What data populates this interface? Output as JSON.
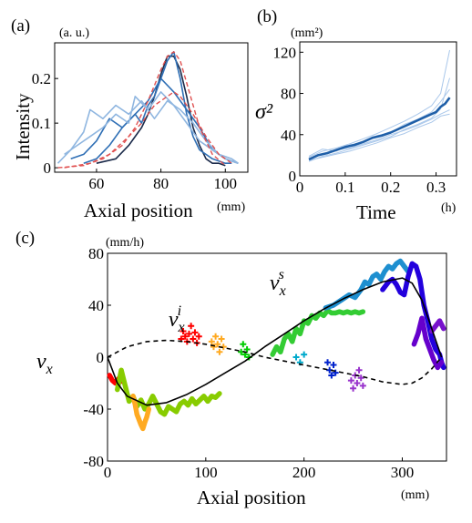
{
  "panels": {
    "a": {
      "label": "(a)"
    },
    "b": {
      "label": "(b)"
    },
    "c": {
      "label": "(c)"
    }
  },
  "colors": {
    "dark_navy": "#1b2a4a",
    "mid_blue": "#2f6fb5",
    "light_blue": "#8fb6e0",
    "red_dashed": "#e05050",
    "mean_line": "#1f5fa8",
    "model_black": "#000000"
  },
  "chart_data": [
    {
      "id": "a",
      "type": "line",
      "xlabel": "Axial position",
      "xunit": "(mm)",
      "ylabel": "Intensity",
      "yunit": "(a. u.)",
      "xlim": [
        47,
        107
      ],
      "ylim": [
        -0.01,
        0.28
      ],
      "xticks": [
        60,
        80,
        100
      ],
      "yticks": [
        0,
        0.1,
        0.2
      ],
      "ytick_labels": [
        "0",
        "0.1",
        "0.2"
      ],
      "series": [
        {
          "color": "#1b2a4a",
          "style": "solid",
          "x": [
            60,
            66,
            70,
            74,
            76,
            78,
            80,
            82,
            84,
            86,
            88,
            90,
            92,
            94,
            96,
            98,
            100
          ],
          "y": [
            0.01,
            0.02,
            0.05,
            0.09,
            0.12,
            0.16,
            0.21,
            0.25,
            0.25,
            0.22,
            0.16,
            0.09,
            0.05,
            0.02,
            0.01,
            0.01,
            0.005
          ]
        },
        {
          "color": "#2f6fb5",
          "style": "solid",
          "x": [
            56,
            60,
            64,
            68,
            72,
            74,
            76,
            78,
            80,
            82,
            84,
            86,
            88,
            90,
            92,
            96,
            100,
            102
          ],
          "y": [
            0.01,
            0.02,
            0.05,
            0.09,
            0.12,
            0.1,
            0.14,
            0.16,
            0.2,
            0.24,
            0.26,
            0.2,
            0.12,
            0.07,
            0.04,
            0.02,
            0.01,
            0.01
          ]
        },
        {
          "color": "#2f6fb5",
          "style": "solid",
          "x": [
            52,
            56,
            60,
            64,
            68,
            72,
            76,
            80,
            84,
            88,
            92,
            96,
            100,
            104
          ],
          "y": [
            0.02,
            0.03,
            0.06,
            0.11,
            0.09,
            0.12,
            0.15,
            0.2,
            0.17,
            0.13,
            0.09,
            0.04,
            0.02,
            0.01
          ]
        },
        {
          "color": "#8fb6e0",
          "style": "solid",
          "x": [
            48,
            52,
            56,
            58,
            62,
            66,
            70,
            74,
            78,
            82,
            86,
            90,
            94,
            98,
            102,
            104
          ],
          "y": [
            0.01,
            0.04,
            0.08,
            0.13,
            0.11,
            0.14,
            0.12,
            0.15,
            0.11,
            0.15,
            0.13,
            0.1,
            0.06,
            0.03,
            0.02,
            0.01
          ]
        },
        {
          "color": "#8fb6e0",
          "style": "solid",
          "x": [
            50,
            54,
            58,
            62,
            66,
            70,
            72,
            76,
            80,
            84,
            88,
            92,
            96,
            100,
            104
          ],
          "y": [
            0.03,
            0.05,
            0.07,
            0.09,
            0.12,
            0.1,
            0.16,
            0.13,
            0.17,
            0.14,
            0.1,
            0.06,
            0.04,
            0.02,
            0.01
          ]
        },
        {
          "color": "#e05050",
          "style": "dashed",
          "x": [
            48,
            56,
            62,
            68,
            72,
            76,
            80,
            82,
            84,
            86,
            88,
            92,
            96,
            100
          ],
          "y": [
            0,
            0.005,
            0.02,
            0.05,
            0.09,
            0.15,
            0.22,
            0.25,
            0.26,
            0.24,
            0.19,
            0.09,
            0.03,
            0.005
          ]
        },
        {
          "color": "#e05050",
          "style": "dashed",
          "x": [
            50,
            58,
            64,
            70,
            74,
            78,
            82,
            84,
            86,
            90,
            94,
            98,
            102
          ],
          "y": [
            0,
            0.01,
            0.03,
            0.07,
            0.1,
            0.14,
            0.16,
            0.17,
            0.16,
            0.12,
            0.07,
            0.03,
            0.01
          ]
        }
      ]
    },
    {
      "id": "b",
      "type": "line",
      "xlabel": "Time",
      "xunit": "(h)",
      "ylabel": "σ²",
      "yunit": "(mm²)",
      "xlim": [
        0,
        0.345
      ],
      "ylim": [
        0,
        130
      ],
      "xticks": [
        0,
        0.1,
        0.2,
        0.3
      ],
      "xtick_labels": [
        "0",
        "0.1",
        "0.2",
        "0.3"
      ],
      "yticks": [
        0,
        40,
        80,
        120
      ],
      "series": [
        {
          "role": "mean",
          "color": "#1f5fa8",
          "width": 2.6,
          "x": [
            0.02,
            0.04,
            0.06,
            0.08,
            0.1,
            0.12,
            0.14,
            0.16,
            0.18,
            0.2,
            0.22,
            0.24,
            0.26,
            0.28,
            0.3,
            0.31,
            0.32,
            0.33
          ],
          "y": [
            16,
            20,
            22,
            25,
            28,
            30,
            33,
            37,
            39,
            42,
            46,
            50,
            54,
            58,
            62,
            67,
            70,
            76
          ]
        },
        {
          "role": "trial",
          "color": "#a9c7ea",
          "width": 1,
          "x": [
            0.02,
            0.05,
            0.08,
            0.11,
            0.14,
            0.17,
            0.2,
            0.23,
            0.26,
            0.29,
            0.31,
            0.33
          ],
          "y": [
            14,
            19,
            22,
            26,
            30,
            34,
            38,
            45,
            50,
            56,
            65,
            95
          ]
        },
        {
          "role": "trial",
          "color": "#a9c7ea",
          "width": 1,
          "x": [
            0.02,
            0.05,
            0.08,
            0.11,
            0.14,
            0.17,
            0.2,
            0.23,
            0.26,
            0.29,
            0.31,
            0.33
          ],
          "y": [
            18,
            24,
            27,
            31,
            36,
            41,
            47,
            53,
            60,
            68,
            80,
            122
          ]
        },
        {
          "role": "trial",
          "color": "#a9c7ea",
          "width": 1,
          "x": [
            0.02,
            0.05,
            0.08,
            0.11,
            0.14,
            0.17,
            0.2,
            0.23,
            0.26,
            0.29,
            0.31,
            0.33
          ],
          "y": [
            16,
            21,
            25,
            27,
            31,
            35,
            40,
            44,
            49,
            55,
            60,
            64
          ]
        },
        {
          "role": "trial",
          "color": "#a9c7ea",
          "width": 1,
          "x": [
            0.02,
            0.05,
            0.08,
            0.11,
            0.14,
            0.17,
            0.2,
            0.23,
            0.26,
            0.29,
            0.31,
            0.33
          ],
          "y": [
            19,
            26,
            24,
            30,
            33,
            39,
            42,
            50,
            55,
            62,
            72,
            84
          ]
        },
        {
          "role": "trial",
          "color": "#a9c7ea",
          "width": 1,
          "x": [
            0.02,
            0.05,
            0.08,
            0.11,
            0.14,
            0.17,
            0.2,
            0.23,
            0.26,
            0.29,
            0.31,
            0.33
          ],
          "y": [
            15,
            18,
            21,
            24,
            28,
            32,
            37,
            41,
            47,
            52,
            58,
            60
          ]
        }
      ]
    },
    {
      "id": "c",
      "type": "scatter",
      "xlabel": "Axial position",
      "xunit": "(mm)",
      "ylabel": "v_x",
      "yunit": "(mm/h)",
      "xlim": [
        0,
        345
      ],
      "ylim": [
        -80,
        80
      ],
      "xticks": [
        0,
        100,
        200,
        300
      ],
      "yticks": [
        -80,
        -40,
        0,
        40,
        80
      ],
      "annotations": [
        {
          "base": "v",
          "sub": "x",
          "sup": "i",
          "x": 62,
          "y": 24
        },
        {
          "base": "v",
          "sub": "x",
          "sup": "s",
          "x": 165,
          "y": 52
        }
      ],
      "model_lines": [
        {
          "name": "v_x^s",
          "color": "#000000",
          "style": "solid",
          "x": [
            0,
            10,
            20,
            40,
            60,
            80,
            100,
            120,
            140,
            160,
            180,
            200,
            220,
            240,
            260,
            280,
            300,
            310,
            320,
            330,
            340
          ],
          "y": [
            0,
            -20,
            -30,
            -37,
            -35,
            -29,
            -21,
            -12,
            -3,
            8,
            18,
            28,
            37,
            45,
            52,
            58,
            61,
            57,
            44,
            22,
            0
          ]
        },
        {
          "name": "v_x^i",
          "color": "#000000",
          "style": "dashed",
          "x": [
            0,
            20,
            40,
            60,
            80,
            100,
            120,
            140,
            160,
            180,
            200,
            220,
            240,
            260,
            280,
            300,
            310,
            320,
            330,
            340
          ],
          "y": [
            0,
            8,
            12,
            13,
            12,
            10,
            7,
            4,
            0,
            -3,
            -6,
            -9,
            -12,
            -15,
            -19,
            -21,
            -20,
            -16,
            -9,
            0
          ]
        }
      ],
      "series": [
        {
          "color": "#ff0000",
          "marker": "line",
          "x": [
            2,
            5,
            8,
            12,
            16
          ],
          "y": [
            -14,
            -18,
            -20,
            -16,
            -19
          ]
        },
        {
          "color": "#ff0000",
          "marker": "plus",
          "x": [
            75,
            77,
            79,
            81,
            83,
            85,
            87,
            89,
            91,
            93
          ],
          "y": [
            14,
            20,
            16,
            12,
            18,
            24,
            14,
            19,
            11,
            16
          ]
        },
        {
          "color": "#88cc00",
          "marker": "line",
          "x": [
            10,
            14,
            18,
            22,
            26,
            30,
            34,
            38,
            42,
            46,
            50,
            54,
            58,
            62,
            66,
            70,
            74,
            78,
            82,
            86,
            90,
            94,
            98,
            102,
            106,
            110,
            114
          ],
          "y": [
            -25,
            -10,
            -22,
            -34,
            -30,
            -38,
            -33,
            -40,
            -36,
            -30,
            -36,
            -42,
            -44,
            -38,
            -40,
            -42,
            -36,
            -34,
            -37,
            -32,
            -36,
            -33,
            -30,
            -34,
            -30,
            -31,
            -28
          ]
        },
        {
          "color": "#ffaa22",
          "marker": "line",
          "x": [
            26,
            28,
            30,
            32,
            34,
            36,
            38,
            40,
            42
          ],
          "y": [
            -30,
            -36,
            -44,
            -48,
            -52,
            -55,
            -50,
            -46,
            -40
          ]
        },
        {
          "color": "#ffaa22",
          "marker": "plus",
          "x": [
            106,
            108,
            110,
            112,
            114,
            116,
            118
          ],
          "y": [
            12,
            8,
            16,
            10,
            4,
            14,
            8
          ]
        },
        {
          "color": "#00cc00",
          "marker": "plus",
          "x": [
            136,
            138,
            140,
            142,
            144
          ],
          "y": [
            4,
            10,
            2,
            6,
            0
          ]
        },
        {
          "color": "#33cc33",
          "marker": "line",
          "x": [
            168,
            172,
            176,
            180,
            184,
            188,
            192,
            196,
            200,
            204,
            208,
            212,
            216,
            220,
            224,
            228,
            232,
            236,
            240,
            244,
            248,
            252,
            256,
            260
          ],
          "y": [
            2,
            8,
            4,
            14,
            18,
            12,
            22,
            18,
            28,
            26,
            32,
            30,
            34,
            32,
            36,
            34,
            34,
            35,
            34,
            35,
            34,
            35,
            34,
            35
          ]
        },
        {
          "color": "#00aacc",
          "marker": "plus",
          "x": [
            192,
            196,
            200
          ],
          "y": [
            0,
            -4,
            2
          ]
        },
        {
          "color": "#1e8fd0",
          "marker": "line",
          "x": [
            222,
            230,
            238,
            246,
            252,
            258,
            262,
            266,
            270,
            274,
            278,
            282,
            286,
            290,
            294,
            298,
            302,
            306
          ],
          "y": [
            38,
            40,
            44,
            48,
            46,
            52,
            58,
            56,
            62,
            64,
            60,
            66,
            70,
            68,
            72,
            74,
            70,
            66
          ]
        },
        {
          "color": "#0022cc",
          "marker": "plus",
          "x": [
            224,
            226,
            228,
            230,
            232
          ],
          "y": [
            -4,
            -10,
            -14,
            -6,
            -12
          ]
        },
        {
          "color": "#2200dd",
          "marker": "line",
          "x": [
            280,
            286,
            290,
            294,
            298,
            302,
            306,
            310,
            314,
            318,
            322,
            326,
            330,
            334,
            338,
            340,
            342
          ],
          "y": [
            52,
            58,
            60,
            56,
            50,
            48,
            62,
            72,
            70,
            60,
            40,
            28,
            14,
            6,
            2,
            -4,
            -8
          ]
        },
        {
          "color": "#9933cc",
          "marker": "plus",
          "x": [
            248,
            250,
            252,
            254,
            256,
            258,
            260
          ],
          "y": [
            -18,
            -24,
            -14,
            -20,
            -10,
            -16,
            -22
          ]
        },
        {
          "color": "#6600cc",
          "marker": "line",
          "x": [
            312,
            316,
            320,
            324,
            328,
            332,
            336,
            340
          ],
          "y": [
            10,
            18,
            30,
            14,
            6,
            -2,
            -8,
            -4
          ]
        },
        {
          "color": "#7711cc",
          "marker": "line",
          "x": [
            330,
            334,
            338,
            342
          ],
          "y": [
            20,
            24,
            28,
            22
          ]
        }
      ]
    }
  ]
}
